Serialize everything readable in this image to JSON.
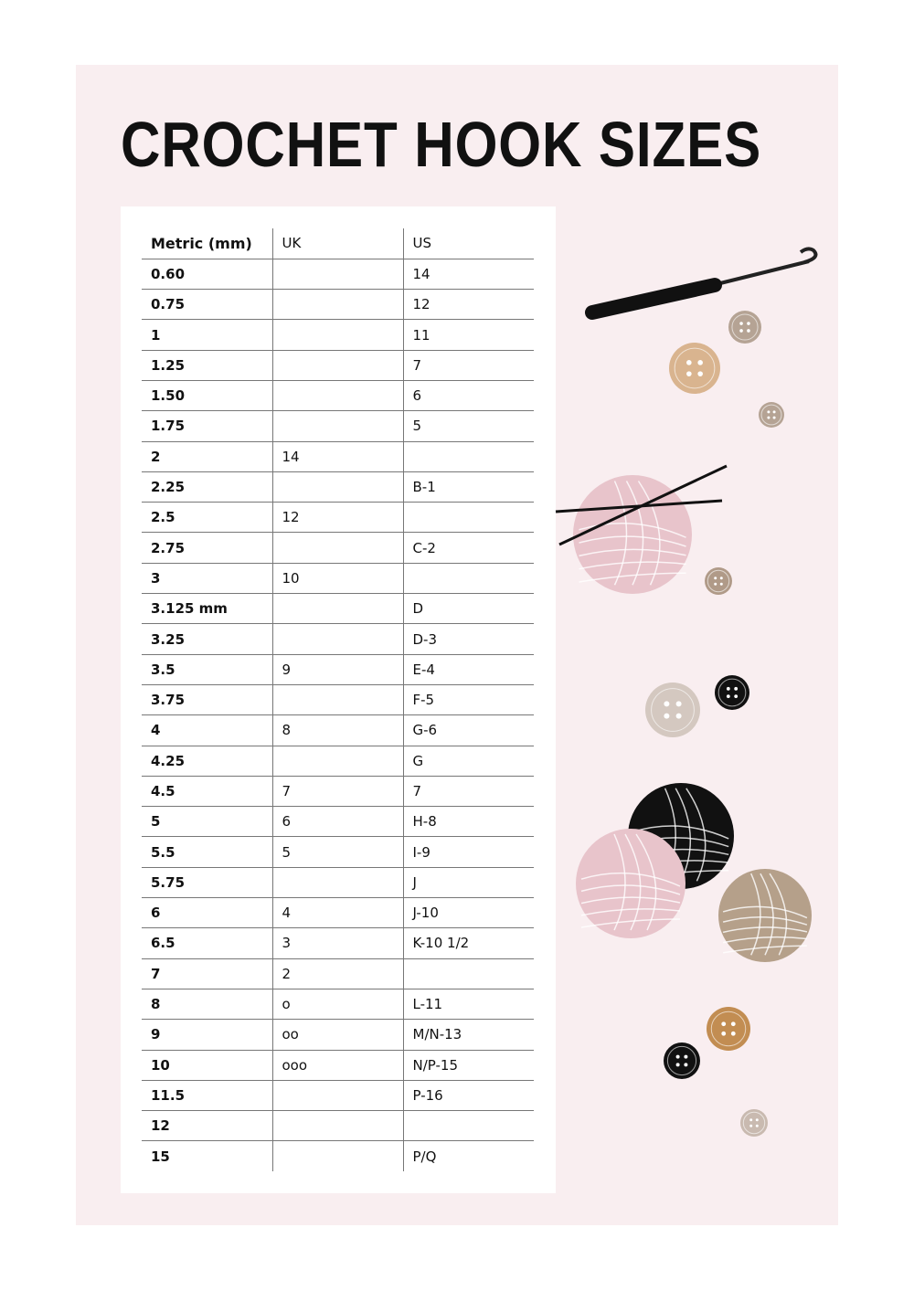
{
  "title": "CROCHET HOOK SIZES",
  "table": {
    "headers": [
      "Metric (mm)",
      "UK",
      "US"
    ],
    "rows": [
      [
        "0.60",
        "",
        "14"
      ],
      [
        "0.75",
        "",
        "12"
      ],
      [
        "1",
        "",
        "11"
      ],
      [
        "1.25",
        "",
        "7"
      ],
      [
        "1.50",
        "",
        "6"
      ],
      [
        "1.75",
        "",
        "5"
      ],
      [
        "2",
        "14",
        ""
      ],
      [
        "2.25",
        "",
        "B-1"
      ],
      [
        "2.5",
        "12",
        ""
      ],
      [
        "2.75",
        "",
        "C-2"
      ],
      [
        "3",
        "10",
        ""
      ],
      [
        "3.125 mm",
        "",
        "D"
      ],
      [
        "3.25",
        "",
        "D-3"
      ],
      [
        "3.5",
        "9",
        "E-4"
      ],
      [
        "3.75",
        "",
        "F-5"
      ],
      [
        "4",
        "8",
        "G-6"
      ],
      [
        "4.25",
        "",
        "G"
      ],
      [
        "4.5",
        "7",
        "7"
      ],
      [
        "5",
        "6",
        "H-8"
      ],
      [
        "5.5",
        "5",
        "I-9"
      ],
      [
        "5.75",
        "",
        "J"
      ],
      [
        "6",
        "4",
        "J-10"
      ],
      [
        "6.5",
        "3",
        "K-10 1/2"
      ],
      [
        "7",
        "2",
        ""
      ],
      [
        "8",
        "o",
        "L-11"
      ],
      [
        "9",
        "oo",
        "M/N-13"
      ],
      [
        "10",
        "ooo",
        "N/P-15"
      ],
      [
        "11.5",
        "",
        "P-16"
      ],
      [
        "12",
        "",
        ""
      ],
      [
        "15",
        "",
        "P/Q"
      ]
    ]
  },
  "colors": {
    "background": "#f9eef0",
    "pink_yarn": "#e8c4cb",
    "tan_yarn": "#b5a08a",
    "black_yarn": "#111111"
  },
  "illustrations": [
    "crochet-hook-icon",
    "button-icon",
    "yarn-ball-icon",
    "knitting-needles-icon"
  ]
}
